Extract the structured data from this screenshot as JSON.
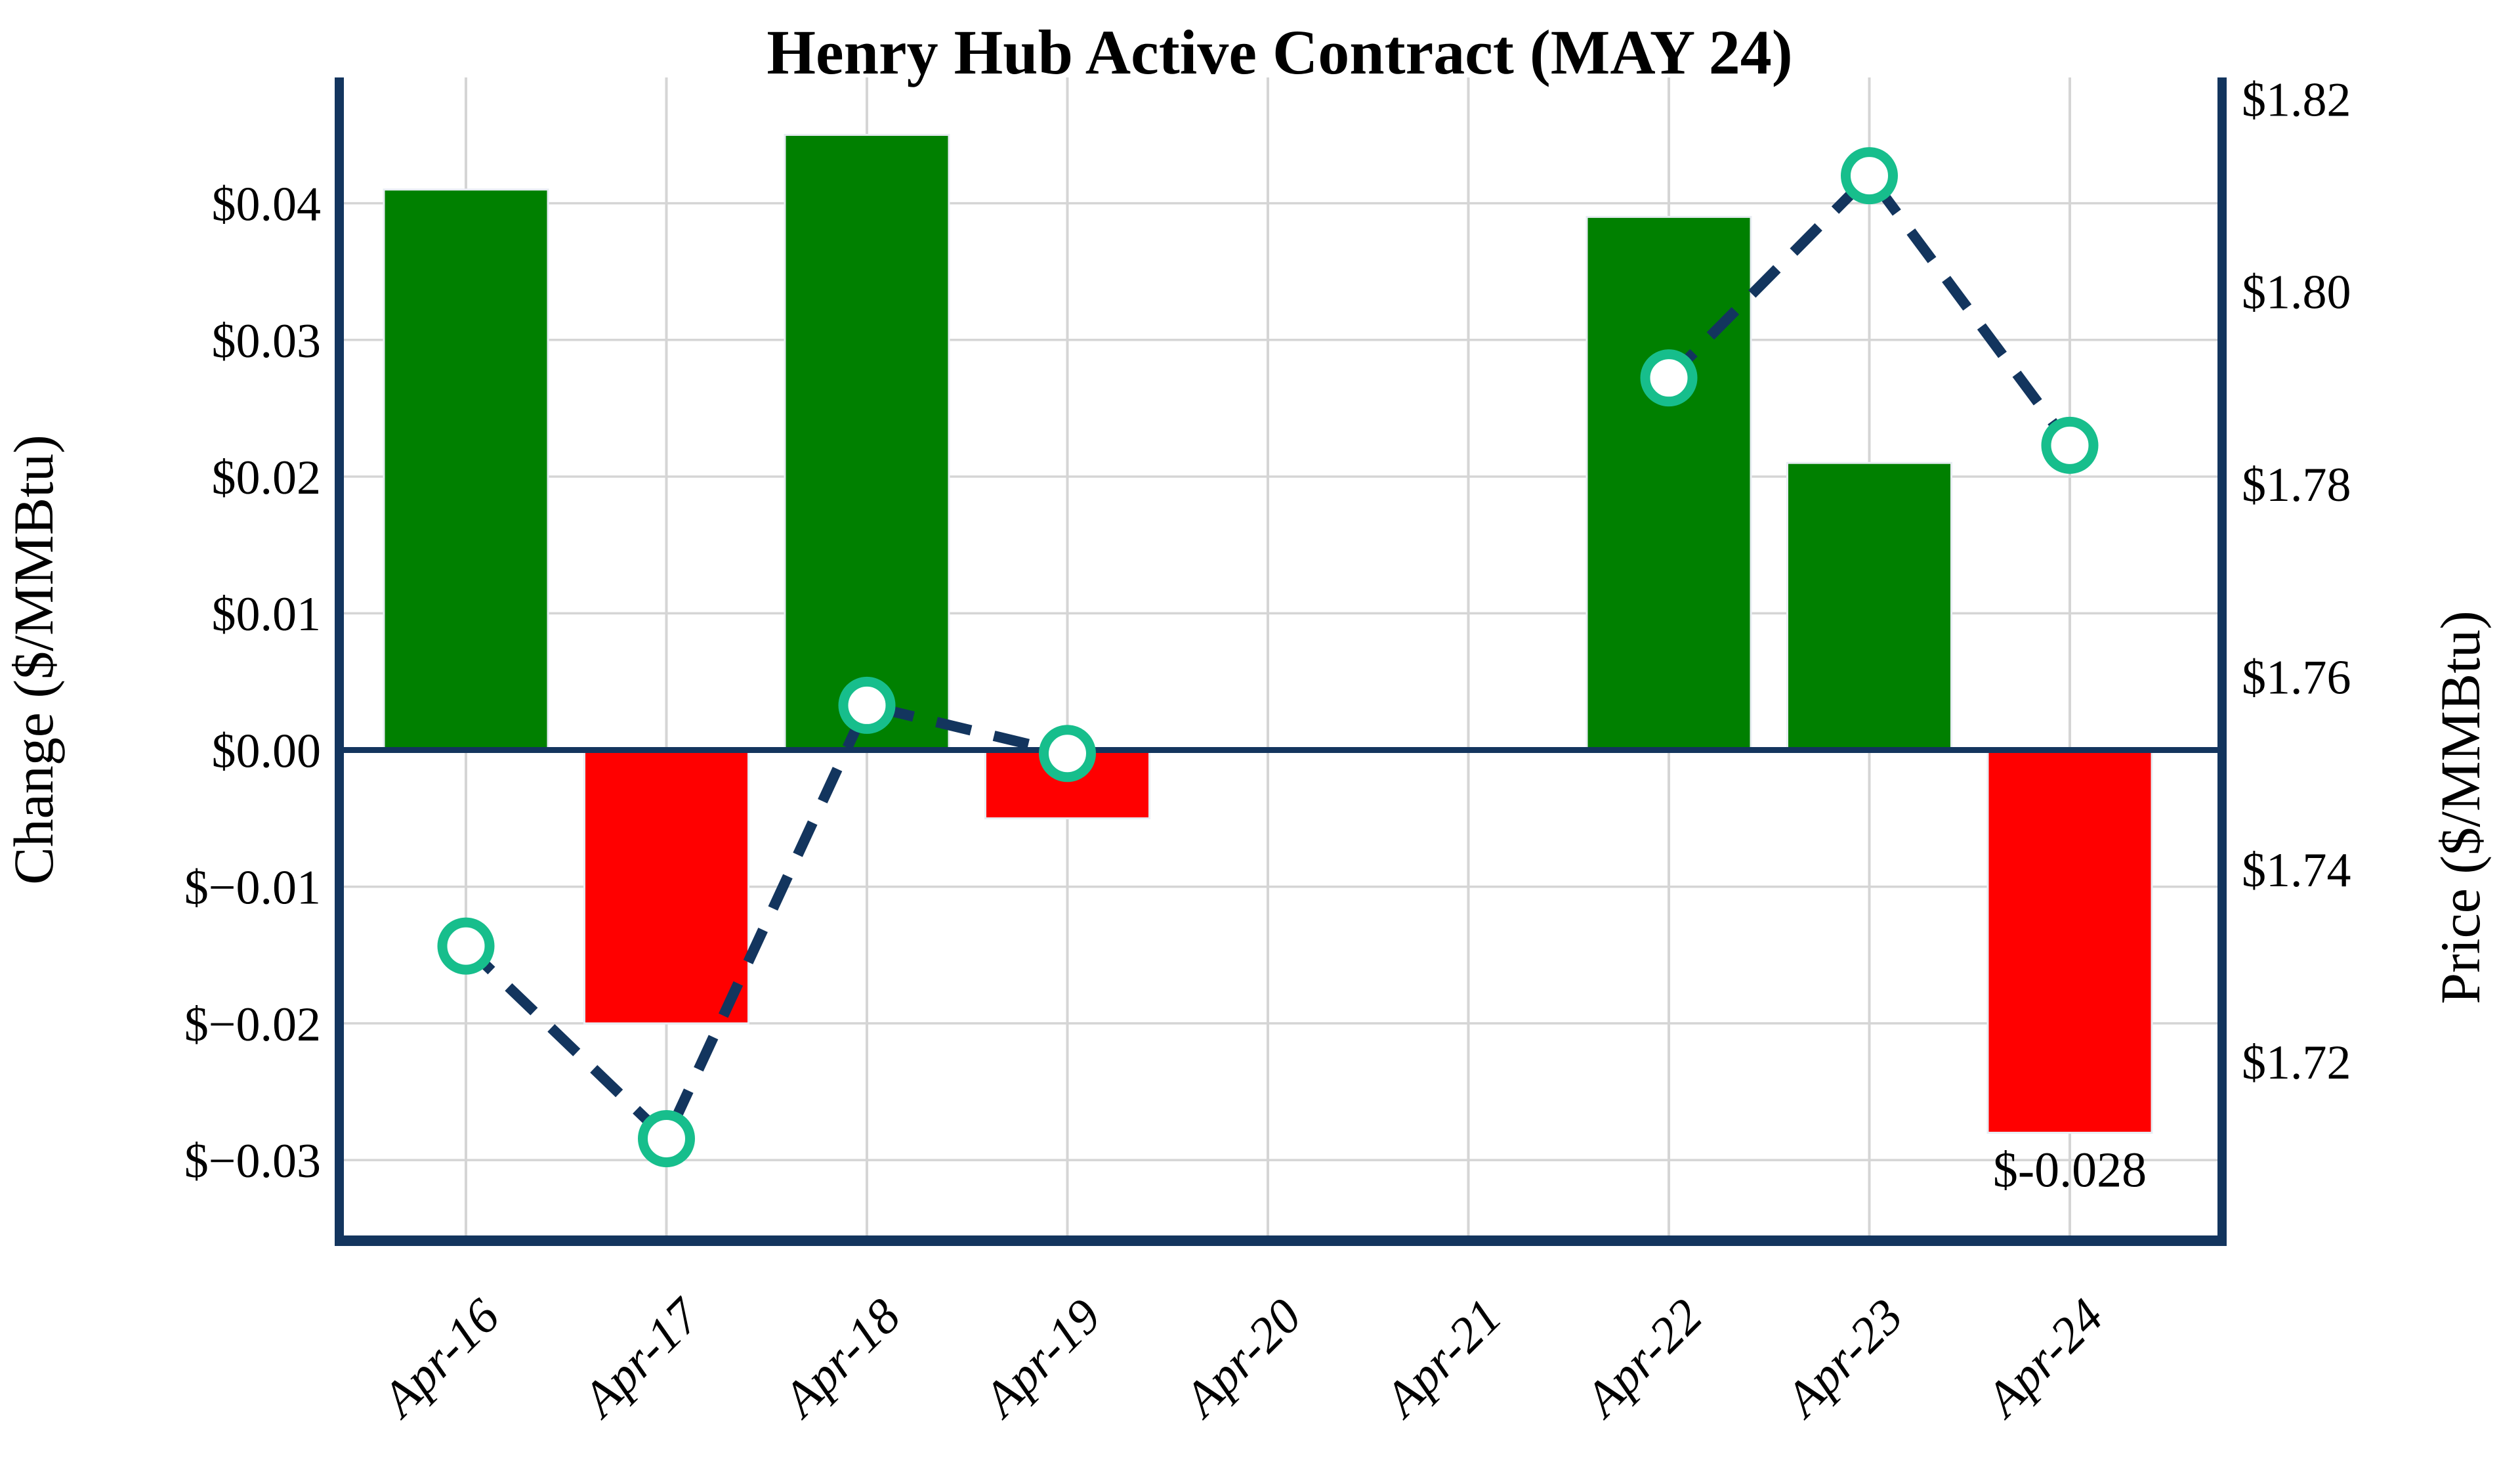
{
  "title": "Henry Hub Active Contract (MAY 24)",
  "chart_data": {
    "type": "combo-bar-line",
    "title": "Henry Hub Active Contract (MAY 24)",
    "categories": [
      "Apr-16",
      "Apr-17",
      "Apr-18",
      "Apr-19",
      "Apr-20",
      "Apr-21",
      "Apr-22",
      "Apr-23",
      "Apr-24"
    ],
    "series": [
      {
        "name": "Daily Change",
        "type": "bar",
        "axis": "left",
        "values": [
          0.041,
          -0.02,
          0.045,
          -0.005,
          null,
          null,
          0.039,
          0.021,
          -0.028
        ]
      },
      {
        "name": "Price",
        "type": "line",
        "axis": "right",
        "line_style": "dashed",
        "marker": "circle",
        "values": [
          1.732,
          1.712,
          1.757,
          1.752,
          null,
          null,
          1.791,
          1.812,
          1.784
        ]
      }
    ],
    "xlabel": "",
    "ylabel_left": "Change ($/MMBtu)",
    "ylabel_right": "Price ($/MMBtu)",
    "ylim_left": [
      -0.0359,
      0.0492
    ],
    "ylim_right": [
      1.7014,
      1.8222
    ],
    "yticks_left": {
      "values": [
        0.04,
        0.03,
        0.02,
        0.01,
        0.0,
        -0.01,
        -0.02,
        -0.03
      ],
      "labels": [
        "$0.04",
        "$0.03",
        "$0.02",
        "$0.01",
        "$0.00",
        "$−0.01",
        "$−0.02",
        "$−0.03"
      ]
    },
    "yticks_right": {
      "values": [
        1.82,
        1.8,
        1.78,
        1.76,
        1.74,
        1.72
      ],
      "labels": [
        "$1.82",
        "$1.80",
        "$1.78",
        "$1.76",
        "$1.74",
        "$1.72"
      ]
    },
    "grid": true,
    "legend": "none",
    "zero_line": true,
    "annotations": [
      {
        "text": "$-0.028",
        "category": "Apr-24",
        "position": "below-bar"
      }
    ]
  },
  "colors": {
    "bar_positive": "#008000",
    "bar_negative": "#FF0000",
    "bar_edge": "#E8EDF3",
    "line": "#13355E",
    "marker_edge": "#17BE8C",
    "marker_face": "#FFFFFF",
    "grid": "#D5D5D5",
    "spine": "#13355E",
    "zero_line": "#13355E",
    "background": "#FFFFFF",
    "text": "#000000"
  }
}
